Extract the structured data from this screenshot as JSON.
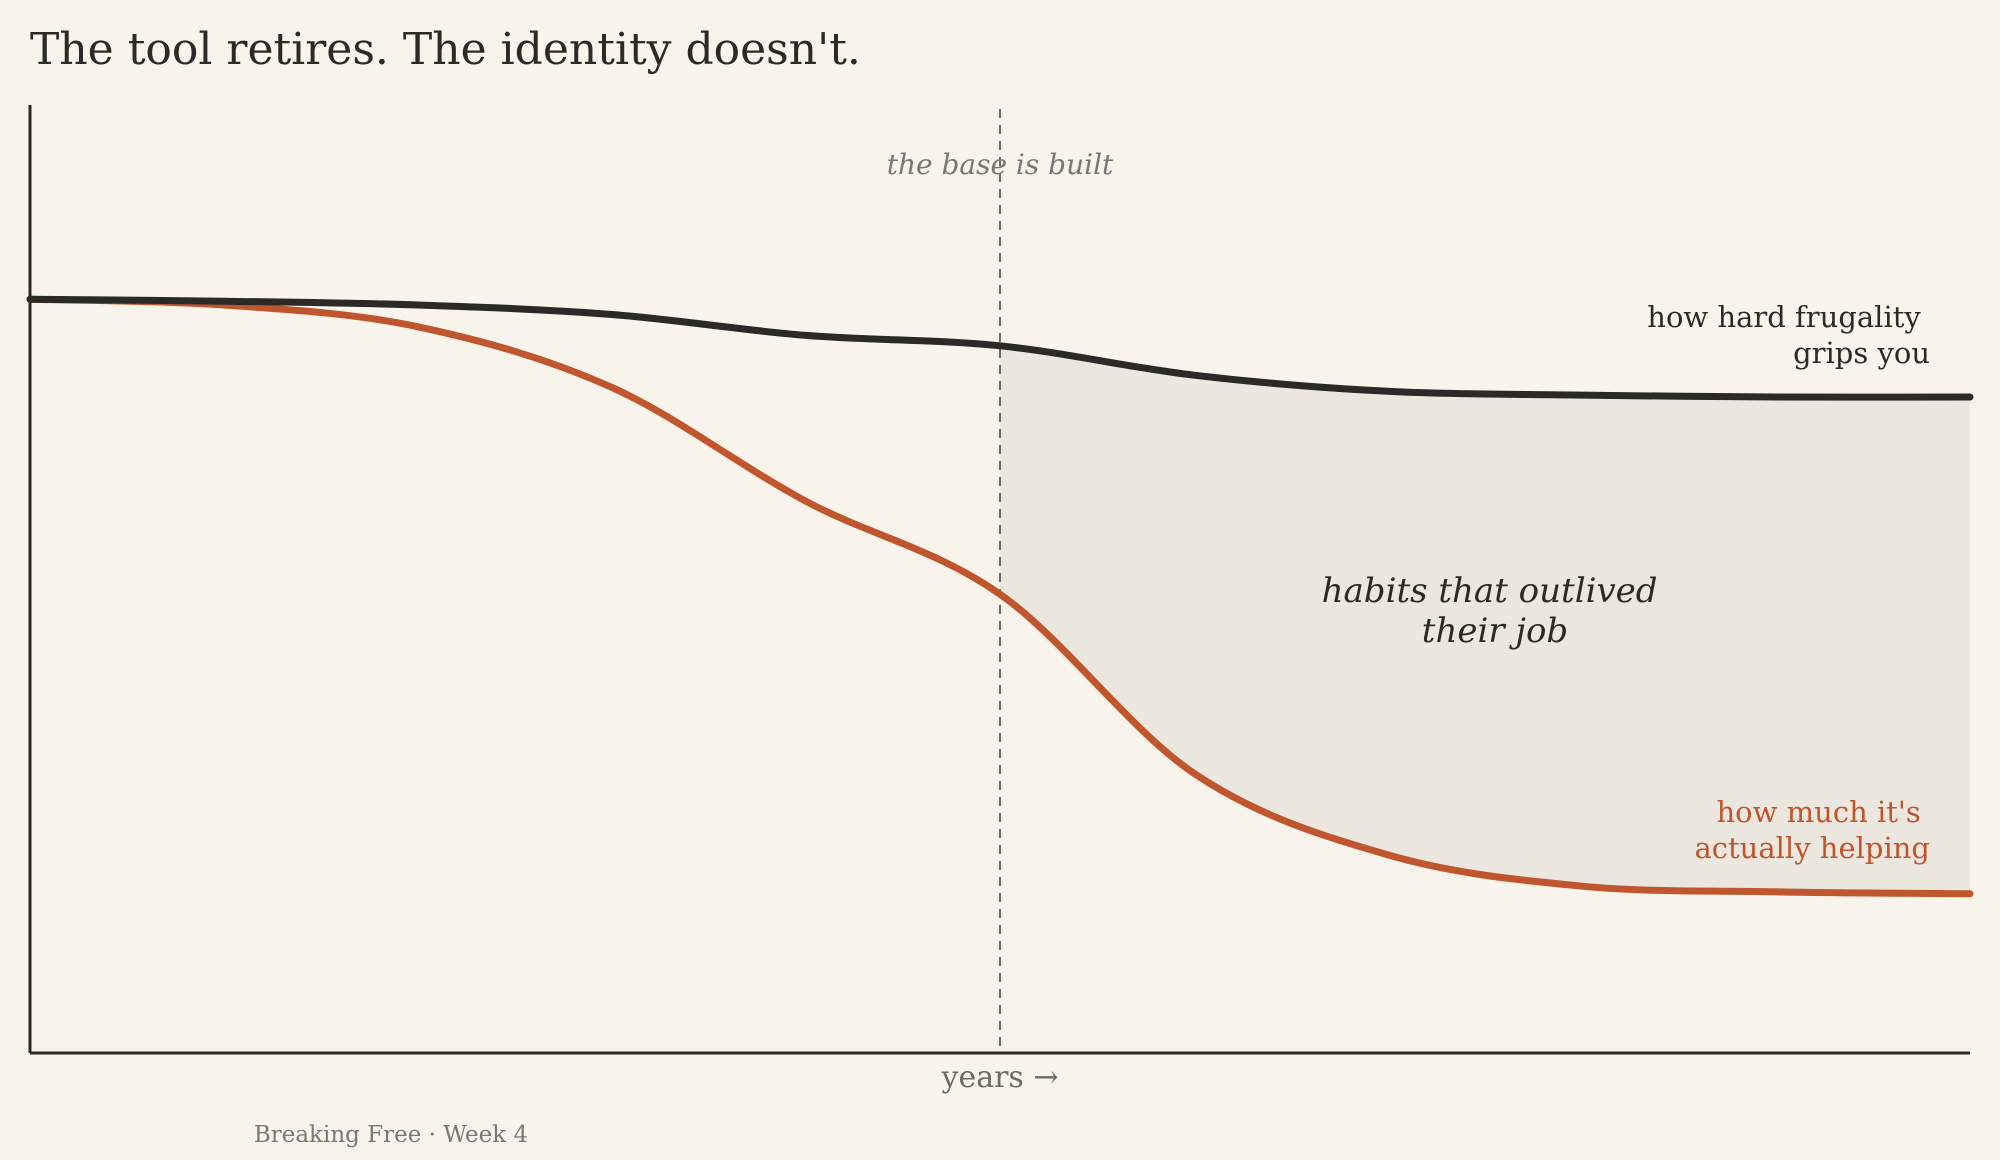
{
  "chart_data": {
    "type": "line",
    "title": "The tool retires. The identity doesn't.",
    "xlabel": "years  →",
    "ylabel": "",
    "xlim": [
      0,
      10
    ],
    "ylim": [
      0,
      100
    ],
    "grid": false,
    "legend": "none",
    "x": [
      0,
      1,
      2,
      3,
      4,
      5,
      6,
      7,
      8,
      9,
      10
    ],
    "series": [
      {
        "name": "how hard frugality grips you",
        "label_lines": [
          "how hard frugality",
          "grips you"
        ],
        "color": "#2b2a26",
        "values": [
          79.5,
          79.3,
          78.9,
          77.9,
          75.7,
          74.6,
          71.5,
          69.8,
          69.4,
          69.2,
          69.2
        ]
      },
      {
        "name": "how much it's actually helping",
        "label_lines": [
          "how much it's",
          "actually helping"
        ],
        "color": "#c0562e",
        "values": [
          79.5,
          78.9,
          76.6,
          70.2,
          58.2,
          48.4,
          29.5,
          20.9,
          17.6,
          17.0,
          16.8
        ]
      }
    ],
    "marker": {
      "x": 5,
      "label": "the base is built"
    },
    "shaded_region": {
      "x_from": 5,
      "x_to": 10,
      "label_lines": [
        "habits that outlived",
        "their job"
      ],
      "color": "#ebe6de"
    }
  },
  "footer": "Breaking Free · Week 4",
  "colors": {
    "background": "#f8f4ec",
    "axis": "#2b2a26",
    "muted": "#7a776c"
  }
}
